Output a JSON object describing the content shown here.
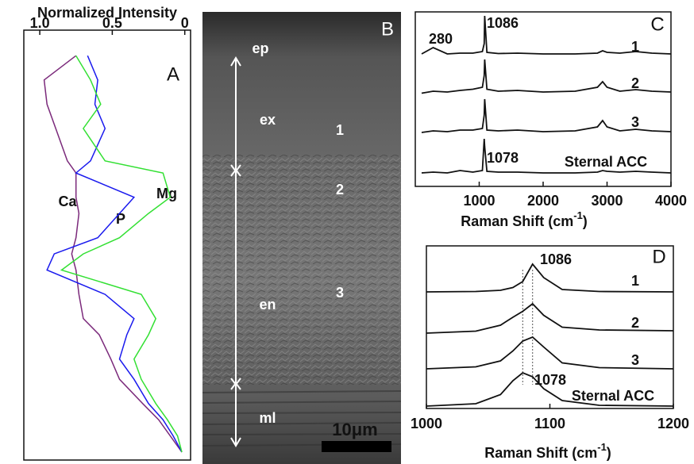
{
  "chart_data": [
    {
      "type": "profile",
      "panel": "A",
      "title": "Normalized Intensity",
      "xlim": [
        1.11,
        -0.04
      ],
      "xticks": [
        {
          "value": 1.0,
          "label": "1.0"
        },
        0.5,
        0
      ],
      "depth": [
        0.02,
        0.08,
        0.14,
        0.2,
        0.28,
        0.31,
        0.37,
        0.41,
        0.47,
        0.51,
        0.55,
        0.61,
        0.67,
        0.71,
        0.77,
        0.82,
        0.88,
        0.92,
        0.96,
        1.0
      ],
      "series": [
        {
          "name": "Ca",
          "color": "#7b2a7b",
          "values": [
            0.75,
            0.97,
            0.95,
            0.89,
            0.81,
            0.75,
            0.75,
            0.73,
            0.75,
            0.78,
            0.75,
            0.73,
            0.7,
            0.59,
            0.51,
            0.45,
            0.29,
            0.18,
            0.1,
            0.02
          ]
        },
        {
          "name": "P",
          "color": "#1a1aee",
          "values": [
            0.67,
            0.6,
            0.62,
            0.55,
            0.65,
            0.75,
            0.35,
            0.45,
            0.6,
            0.9,
            0.95,
            0.55,
            0.35,
            0.4,
            0.45,
            0.35,
            0.25,
            0.15,
            0.08,
            0.02
          ]
        },
        {
          "name": "Mg",
          "color": "#33e033",
          "values": [
            0.75,
            0.65,
            0.58,
            0.7,
            0.55,
            0.15,
            0.1,
            0.25,
            0.45,
            0.7,
            0.85,
            0.3,
            0.2,
            0.25,
            0.35,
            0.3,
            0.2,
            0.12,
            0.05,
            0.02
          ]
        }
      ]
    },
    {
      "type": "line",
      "panel": "C",
      "xlabel": {
        "text": "Raman Shift  (cm",
        "sup": "-1",
        "end": ")"
      },
      "xlim": [
        0,
        4000
      ],
      "xticks": [
        1000,
        2000,
        3000,
        4000
      ],
      "ylim": [
        0,
        4.4
      ],
      "x": [
        100,
        280,
        500,
        700,
        900,
        1050,
        1078,
        1086,
        1120,
        1300,
        1600,
        2000,
        2500,
        2850,
        2930,
        3000,
        3200,
        3450,
        3700,
        4000
      ],
      "series": [
        {
          "name": "1",
          "color": "#111111",
          "values": [
            3.34,
            3.5,
            3.34,
            3.36,
            3.36,
            3.4,
            3.6,
            4.3,
            3.38,
            3.35,
            3.36,
            3.34,
            3.34,
            3.36,
            3.42,
            3.38,
            3.36,
            3.4,
            3.36,
            3.34
          ]
        },
        {
          "name": "2",
          "color": "#111111",
          "values": [
            2.35,
            2.4,
            2.38,
            2.42,
            2.45,
            2.5,
            2.8,
            3.2,
            2.45,
            2.4,
            2.42,
            2.38,
            2.4,
            2.5,
            2.64,
            2.5,
            2.4,
            2.44,
            2.4,
            2.38
          ]
        },
        {
          "name": "3",
          "color": "#111111",
          "values": [
            1.36,
            1.4,
            1.38,
            1.42,
            1.42,
            1.46,
            1.8,
            2.2,
            1.42,
            1.4,
            1.42,
            1.38,
            1.4,
            1.5,
            1.66,
            1.5,
            1.4,
            1.44,
            1.4,
            1.38
          ]
        },
        {
          "name": "Sternal ACC",
          "color": "#111111",
          "values": [
            0.34,
            0.36,
            0.34,
            0.4,
            0.36,
            0.4,
            1.2,
            1.0,
            0.38,
            0.36,
            0.36,
            0.34,
            0.34,
            0.36,
            0.4,
            0.38,
            0.36,
            0.38,
            0.36,
            0.34
          ]
        }
      ],
      "annotations": [
        "280",
        "1086",
        "1078"
      ]
    },
    {
      "type": "line",
      "panel": "D",
      "xlabel": {
        "text": "Raman Shift  (cm",
        "sup": "-1",
        "end": ")"
      },
      "xlim": [
        1000,
        1200
      ],
      "xticks": [
        1000,
        1100,
        1200
      ],
      "ylim": [
        0,
        4.1
      ],
      "ref_lines": [
        1078,
        1086
      ],
      "x": [
        1000,
        1040,
        1060,
        1070,
        1078,
        1086,
        1095,
        1110,
        1140,
        1200
      ],
      "series": [
        {
          "name": "1",
          "color": "#111111",
          "values": [
            2.94,
            2.95,
            2.98,
            3.05,
            3.2,
            3.64,
            3.3,
            3.0,
            2.95,
            2.94
          ]
        },
        {
          "name": "2",
          "color": "#111111",
          "values": [
            1.9,
            1.95,
            2.1,
            2.3,
            2.45,
            2.64,
            2.35,
            2.05,
            1.98,
            1.96
          ]
        },
        {
          "name": "3",
          "color": "#111111",
          "values": [
            1.0,
            1.05,
            1.2,
            1.45,
            1.7,
            1.8,
            1.55,
            1.15,
            1.03,
            1.0
          ]
        },
        {
          "name": "Sternal ACC",
          "color": "#111111",
          "values": [
            0.06,
            0.12,
            0.35,
            0.7,
            0.9,
            0.8,
            0.5,
            0.2,
            0.08,
            0.06
          ]
        }
      ],
      "annotations": [
        "1086",
        "1078"
      ]
    }
  ],
  "image": {
    "panel": "B",
    "labels": [
      "ep",
      "ex",
      "en",
      "ml",
      "1",
      "2",
      "3"
    ],
    "scale_bar": "10μm"
  }
}
